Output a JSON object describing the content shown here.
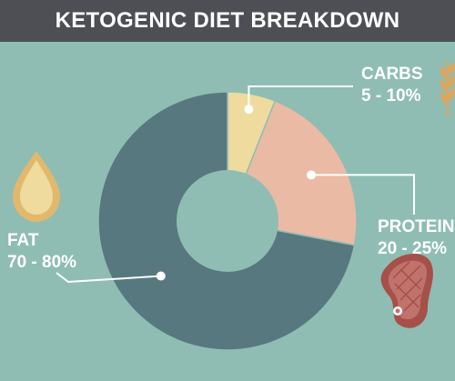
{
  "header": {
    "title": "KETOGENIC DIET BREAKDOWN"
  },
  "chart_data": {
    "type": "pie",
    "title": "KETOGENIC DIET BREAKDOWN",
    "slices": [
      {
        "name": "CARBS",
        "range": "5 - 10%",
        "value": 6,
        "color": "#eedb9d"
      },
      {
        "name": "PROTEIN",
        "range": "20 - 25%",
        "value": 22,
        "color": "#ebbaa5"
      },
      {
        "name": "FAT",
        "range": "70 - 80%",
        "value": 72,
        "color": "#57787f"
      }
    ],
    "donut": true,
    "legend": "none",
    "grid": false
  },
  "icons": {
    "carbs": "wheat-icon",
    "protein": "steak-icon",
    "fat": "oil-drop-icon"
  },
  "colors": {
    "background": "#8fbdb3",
    "banner": "#4d4f54",
    "label_text": "#ffffff",
    "leader_line": "#ffffff"
  }
}
